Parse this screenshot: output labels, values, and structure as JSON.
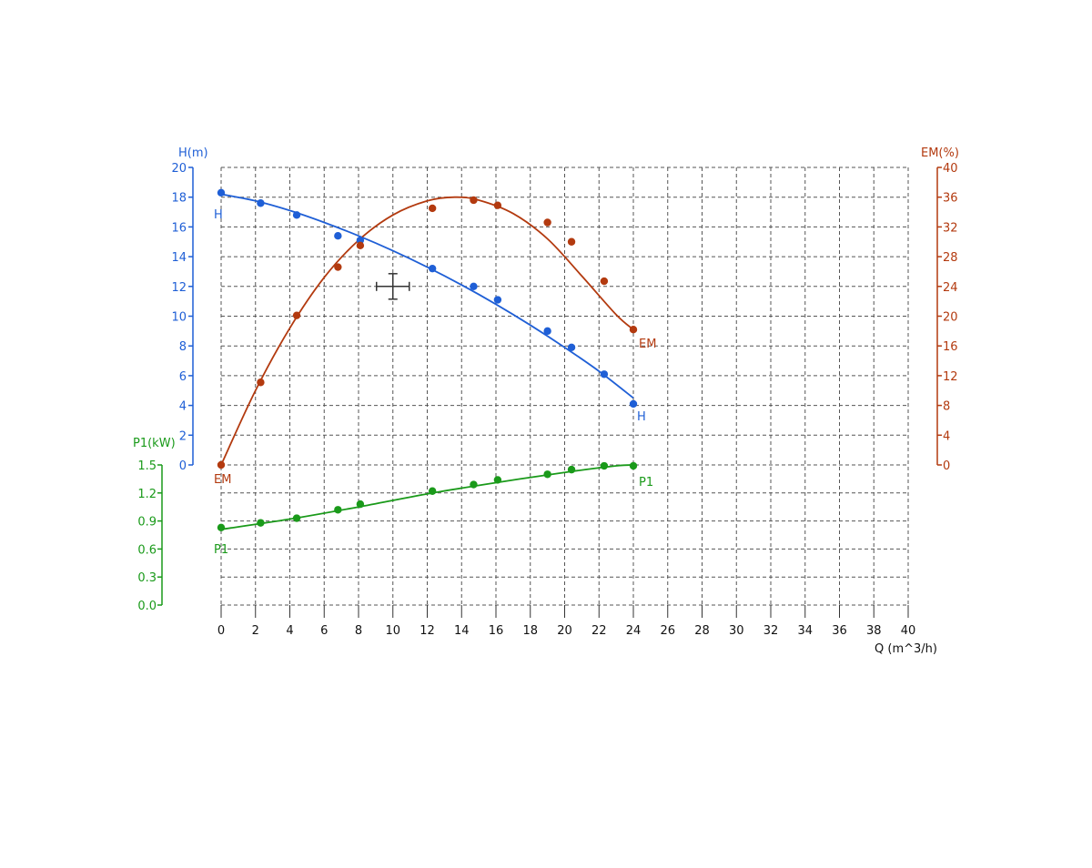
{
  "chart_data": {
    "type": "line",
    "x": {
      "label": "Q (m^3/h)",
      "range": [
        0,
        40
      ],
      "ticks": [
        "0",
        "2",
        "4",
        "6",
        "8",
        "10",
        "12",
        "14",
        "16",
        "18",
        "20",
        "22",
        "24",
        "26",
        "28",
        "30",
        "32",
        "34",
        "36",
        "38",
        "40"
      ]
    },
    "axes": {
      "H": {
        "label": "H(m)",
        "range": [
          0,
          20
        ],
        "ticks": [
          "0",
          "2",
          "4",
          "6",
          "8",
          "10",
          "12",
          "14",
          "16",
          "18",
          "20"
        ],
        "color": "#1f5fd6"
      },
      "EM": {
        "label": "EM(%)",
        "range": [
          0,
          40
        ],
        "ticks": [
          "0",
          "4",
          "8",
          "12",
          "16",
          "20",
          "24",
          "28",
          "32",
          "36",
          "40"
        ],
        "color": "#b33a0f"
      },
      "P1": {
        "label": "P1(kW)",
        "range": [
          0,
          1.5
        ],
        "ticks": [
          "0.0",
          "0.3",
          "0.6",
          "0.9",
          "1.2",
          "1.5"
        ],
        "color": "#1a9a1a"
      }
    },
    "series": [
      {
        "name": "H",
        "axis": "H",
        "color": "#1f5fd6",
        "points": [
          [
            0,
            18.3
          ],
          [
            2.3,
            17.6
          ],
          [
            4.4,
            16.8
          ],
          [
            6.8,
            15.4
          ],
          [
            8.1,
            15.1
          ],
          [
            12.3,
            13.2
          ],
          [
            14.7,
            12.0
          ],
          [
            16.1,
            11.1
          ],
          [
            19.0,
            9.0
          ],
          [
            20.4,
            7.9
          ],
          [
            22.3,
            6.1
          ],
          [
            24.0,
            4.1
          ]
        ],
        "curve": [
          [
            0,
            18.2
          ],
          [
            2,
            17.75
          ],
          [
            4,
            17.1
          ],
          [
            6,
            16.3
          ],
          [
            8,
            15.4
          ],
          [
            10,
            14.4
          ],
          [
            12,
            13.3
          ],
          [
            14,
            12.1
          ],
          [
            16,
            10.8
          ],
          [
            18,
            9.4
          ],
          [
            20,
            7.9
          ],
          [
            22,
            6.3
          ],
          [
            24,
            4.5
          ]
        ],
        "start_label": "H",
        "end_label": "H"
      },
      {
        "name": "EM",
        "axis": "EM",
        "color": "#b33a0f",
        "points": [
          [
            0,
            0
          ],
          [
            2.3,
            11.1
          ],
          [
            4.4,
            20.1
          ],
          [
            6.8,
            26.6
          ],
          [
            8.1,
            29.5
          ],
          [
            12.3,
            34.5
          ],
          [
            14.7,
            35.6
          ],
          [
            16.1,
            34.9
          ],
          [
            19.0,
            32.6
          ],
          [
            20.4,
            30.0
          ],
          [
            22.3,
            24.7
          ],
          [
            24.0,
            18.2
          ]
        ],
        "curve": [
          [
            0,
            0
          ],
          [
            2,
            10
          ],
          [
            4,
            18.4
          ],
          [
            6,
            25.2
          ],
          [
            8,
            30.2
          ],
          [
            10,
            33.6
          ],
          [
            12,
            35.5
          ],
          [
            13.6,
            36
          ],
          [
            15,
            35.6
          ],
          [
            17,
            33.8
          ],
          [
            19,
            30.4
          ],
          [
            21,
            25.4
          ],
          [
            23,
            20.2
          ],
          [
            24,
            18.2
          ]
        ],
        "start_label": "EM",
        "end_label": "EM"
      },
      {
        "name": "P1",
        "axis": "P1",
        "color": "#1a9a1a",
        "points": [
          [
            0,
            0.83
          ],
          [
            2.3,
            0.88
          ],
          [
            4.4,
            0.93
          ],
          [
            6.8,
            1.02
          ],
          [
            8.1,
            1.08
          ],
          [
            12.3,
            1.22
          ],
          [
            14.7,
            1.29
          ],
          [
            16.1,
            1.34
          ],
          [
            19.0,
            1.4
          ],
          [
            20.4,
            1.45
          ],
          [
            22.3,
            1.49
          ],
          [
            24.0,
            1.49
          ]
        ],
        "curve": [
          [
            0,
            0.81
          ],
          [
            4,
            0.92
          ],
          [
            8,
            1.05
          ],
          [
            12,
            1.19
          ],
          [
            16,
            1.31
          ],
          [
            20,
            1.42
          ],
          [
            23,
            1.49
          ],
          [
            24,
            1.5
          ]
        ],
        "start_label": "P1",
        "end_label": "P1"
      }
    ],
    "grid": true,
    "grid_style": "dashed",
    "crosshair": {
      "x": 10,
      "y_axis": "H",
      "y": 12
    }
  }
}
